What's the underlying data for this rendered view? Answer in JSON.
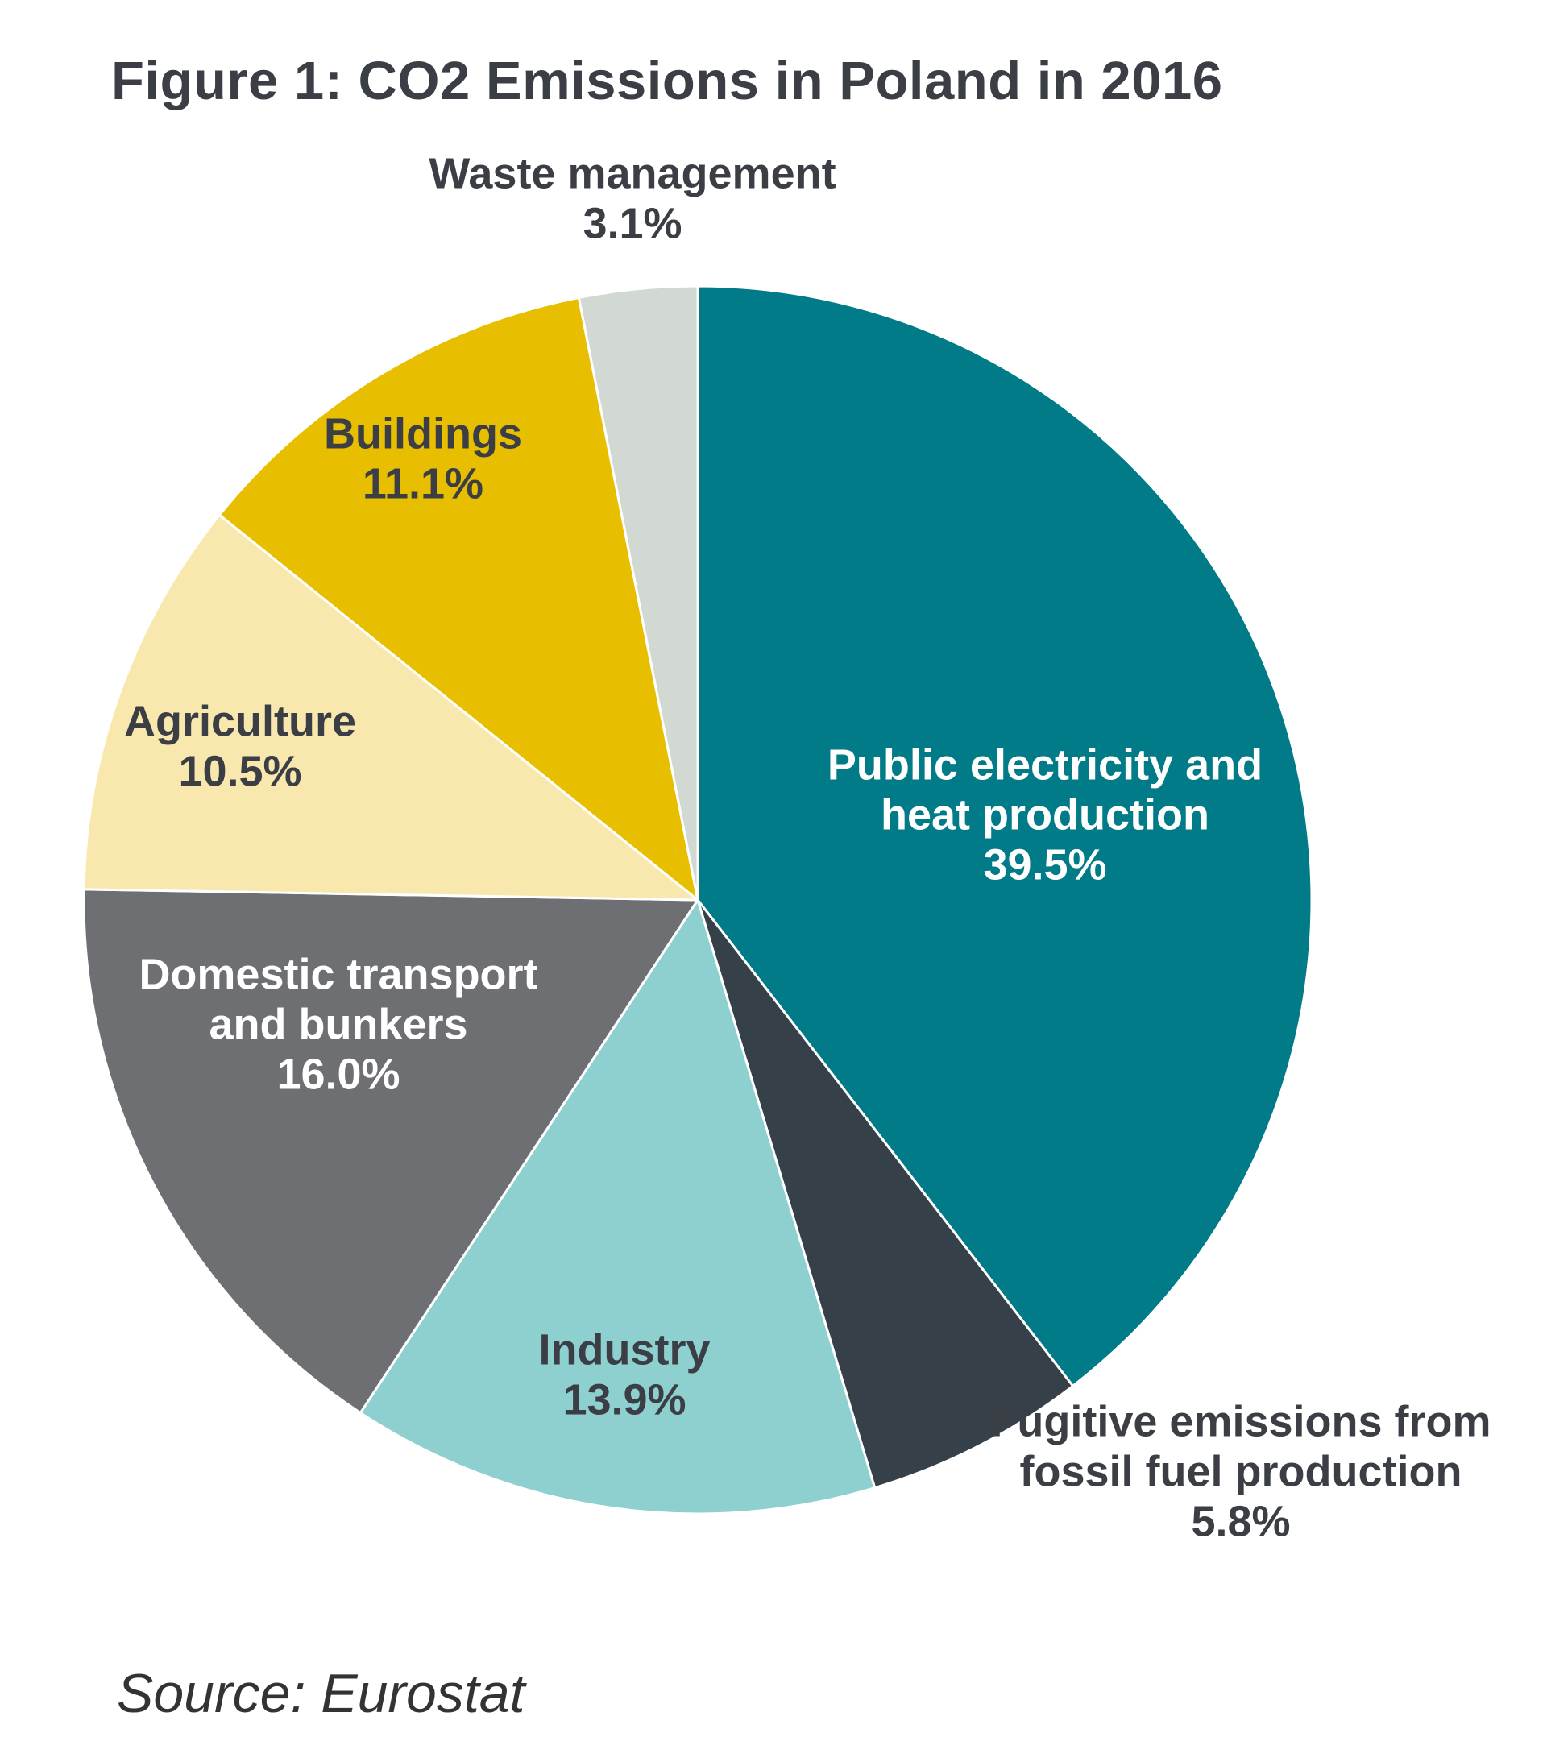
{
  "title": "Figure 1: CO2 Emissions in Poland in 2016",
  "source": "Source: Eurostat",
  "chart_data": {
    "type": "pie",
    "title": "Figure 1: CO2 Emissions in Poland in 2016",
    "start_angle": "12 o'clock",
    "direction": "clockwise",
    "slices": [
      {
        "label": [
          "Public electricity and",
          "heat production"
        ],
        "value": 39.5,
        "display": "39.5%",
        "color": "#007b87",
        "text_color": "#ffffff"
      },
      {
        "label": [
          "Fugitive emissions from",
          "fossil fuel production"
        ],
        "value": 5.8,
        "display": "5.8%",
        "color": "#364048",
        "text_color": "#3b3f45"
      },
      {
        "label": [
          "Industry"
        ],
        "value": 13.9,
        "display": "13.9%",
        "color": "#8ecfd0",
        "text_color": "#3b3f45"
      },
      {
        "label": [
          "Domestic transport",
          "and bunkers"
        ],
        "value": 16.0,
        "display": "16.0%",
        "color": "#6e6f73",
        "text_color": "#ffffff"
      },
      {
        "label": [
          "Agriculture"
        ],
        "value": 10.5,
        "display": "10.5%",
        "color": "#f8e8ae",
        "text_color": "#3b3f45"
      },
      {
        "label": [
          "Buildings"
        ],
        "value": 11.1,
        "display": "11.1%",
        "color": "#e8bf00",
        "text_color": "#3b3f45"
      },
      {
        "label": [
          "Waste management"
        ],
        "value": 3.1,
        "display": "3.1%",
        "color": "#d1d9d2",
        "text_color": "#3b3f45"
      }
    ]
  }
}
